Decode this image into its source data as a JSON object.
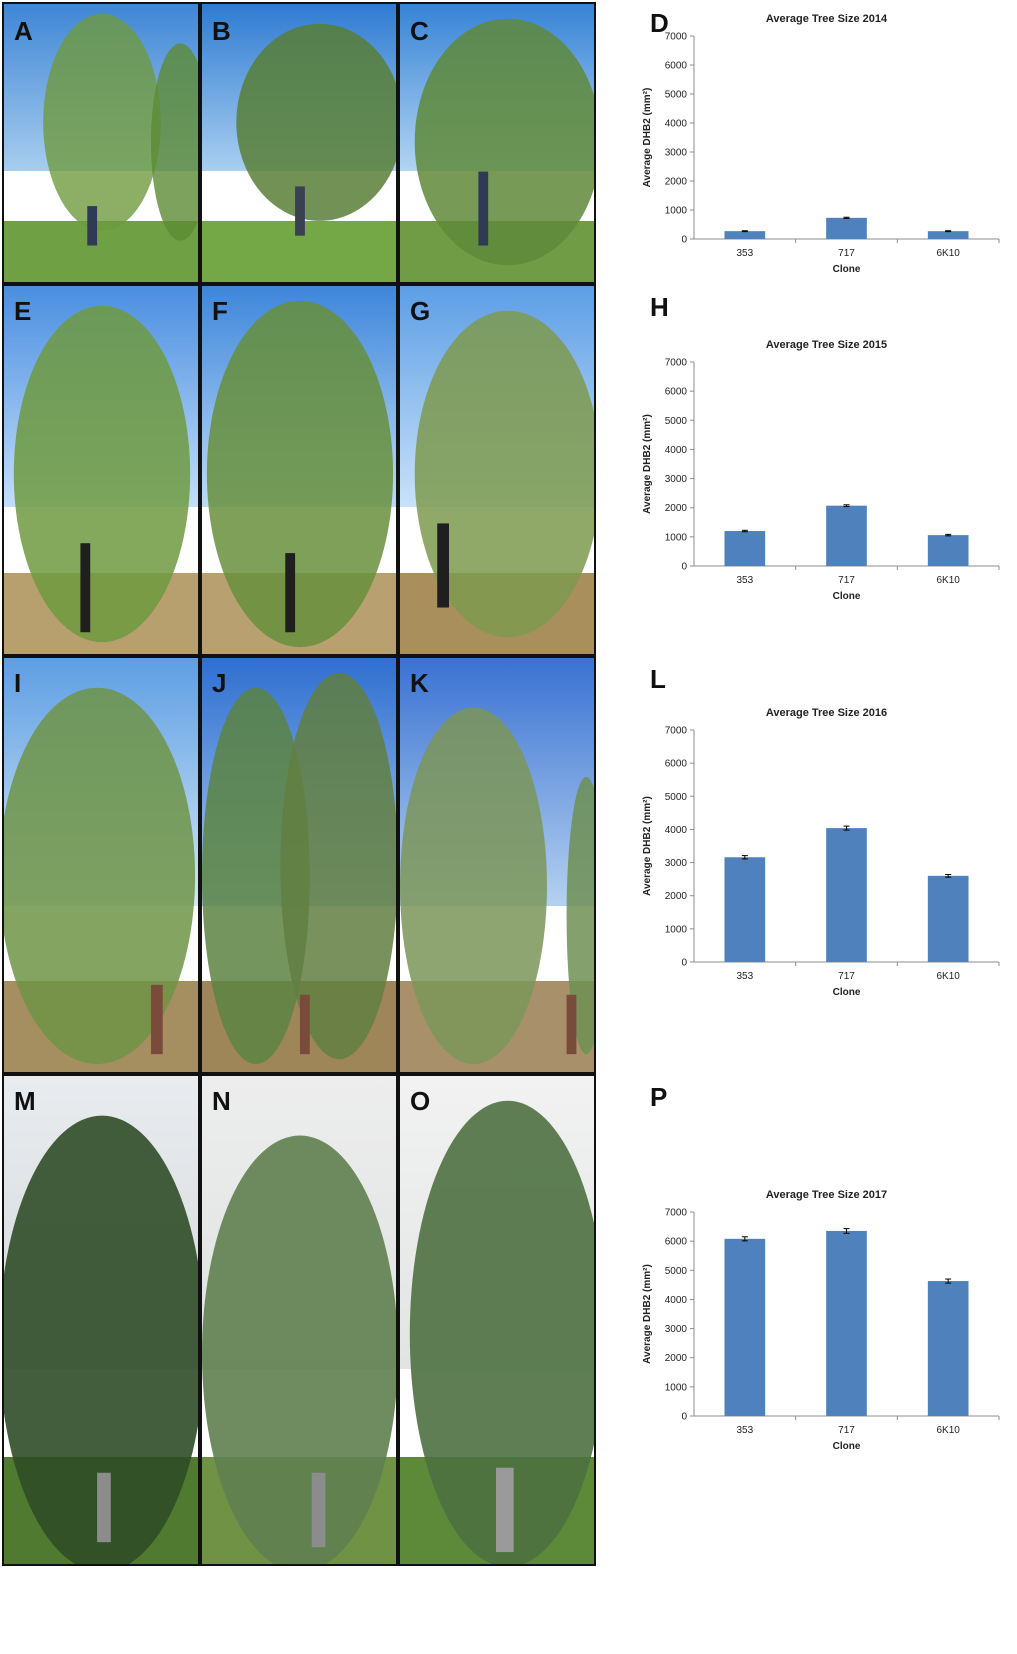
{
  "panel_labels": {
    "photos": [
      [
        "A",
        "B",
        "C"
      ],
      [
        "E",
        "F",
        "G"
      ],
      [
        "I",
        "J",
        "K"
      ],
      [
        "M",
        "N",
        "O"
      ]
    ],
    "charts": [
      "D",
      "H",
      "L",
      "P"
    ]
  },
  "colors": {
    "bar": "#4F81BD",
    "axis": "#8c8c8c",
    "grid": "#bfbfbf"
  },
  "chart_data": [
    {
      "type": "bar",
      "title": "Average Tree Size 2014",
      "xlabel": "Clone",
      "ylabel": "Average DHB2 (mm²)",
      "categories": [
        "353",
        "717",
        "6K10"
      ],
      "values": [
        270,
        730,
        270
      ],
      "errors": [
        15,
        20,
        15
      ],
      "ylim": [
        0,
        7000
      ],
      "yticks": [
        "0",
        "1000",
        "2000",
        "3000",
        "4000",
        "5000",
        "6000",
        "7000"
      ],
      "grid": false
    },
    {
      "type": "bar",
      "title": "Average Tree Size 2015",
      "xlabel": "Clone",
      "ylabel": "Average DHB2 (mm²)",
      "categories": [
        "353",
        "717",
        "6K10"
      ],
      "values": [
        1200,
        2070,
        1060
      ],
      "errors": [
        25,
        30,
        25
      ],
      "ylim": [
        0,
        7000
      ],
      "yticks": [
        "0",
        "1000",
        "2000",
        "3000",
        "4000",
        "5000",
        "6000",
        "7000"
      ],
      "grid": false
    },
    {
      "type": "bar",
      "title": "Average Tree Size 2016",
      "xlabel": "Clone",
      "ylabel": "Average DHB2 (mm²)",
      "categories": [
        "353",
        "717",
        "6K10"
      ],
      "values": [
        3160,
        4040,
        2600
      ],
      "errors": [
        50,
        60,
        40
      ],
      "ylim": [
        0,
        7000
      ],
      "yticks": [
        "0",
        "1000",
        "2000",
        "3000",
        "4000",
        "5000",
        "6000",
        "7000"
      ],
      "grid": false
    },
    {
      "type": "bar",
      "title": "Average Tree Size 2017",
      "xlabel": "Clone",
      "ylabel": "Average DHB2 (mm²)",
      "categories": [
        "353",
        "717",
        "6K10"
      ],
      "values": [
        6080,
        6350,
        4630
      ],
      "errors": [
        70,
        80,
        70
      ],
      "ylim": [
        0,
        7000
      ],
      "yticks": [
        "0",
        "1000",
        "2000",
        "3000",
        "4000",
        "5000",
        "6000",
        "7000"
      ],
      "grid": false
    }
  ]
}
